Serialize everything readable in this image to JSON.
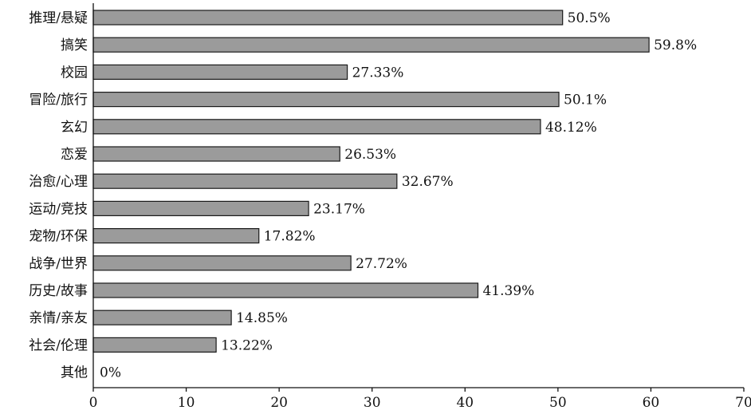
{
  "chart_data": {
    "type": "bar",
    "orientation": "horizontal",
    "title": "",
    "xlabel": "",
    "ylabel": "",
    "xlim": [
      0,
      70
    ],
    "x_ticks": [
      0,
      10,
      20,
      30,
      40,
      50,
      60,
      70
    ],
    "grid": false,
    "categories": [
      "推理/悬疑",
      "搞笑",
      "校园",
      "冒险/旅行",
      "玄幻",
      "恋爱",
      "治愈/心理",
      "运动/竞技",
      "宠物/环保",
      "战争/世界",
      "历史/故事",
      "亲情/亲友",
      "社会/伦理",
      "其他"
    ],
    "values": [
      50.5,
      59.8,
      27.33,
      50.1,
      48.12,
      26.53,
      32.67,
      23.17,
      17.82,
      27.72,
      41.39,
      14.85,
      13.22,
      0
    ],
    "value_labels": [
      "50.5%",
      "59.8%",
      "27.33%",
      "50.1%",
      "48.12%",
      "26.53%",
      "32.67%",
      "23.17%",
      "17.82%",
      "27.72%",
      "41.39%",
      "14.85%",
      "13.22%",
      "0%"
    ],
    "bar_color": "#9b9b9b",
    "bar_edge_color": "#1a1a1a"
  }
}
